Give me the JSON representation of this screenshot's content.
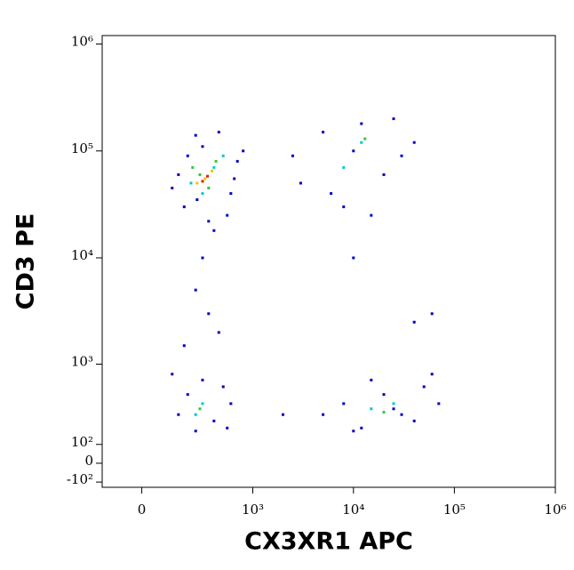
{
  "chart_data": {
    "type": "scatter",
    "x_label": "CX3XR1 APC",
    "y_label": "CD3 PE",
    "scale": "biexponential",
    "xlim": [
      -165,
      1000000
    ],
    "ylim": [
      -130,
      1200000
    ],
    "xticks": [
      0,
      {
        "value": 1000,
        "label": "10³"
      },
      {
        "value": 10000,
        "label": "10⁴"
      },
      {
        "value": 100000,
        "label": "10⁵"
      },
      {
        "value": 1000000,
        "label": "10⁶"
      }
    ],
    "yticks": [
      {
        "value": -100,
        "label": "-10²"
      },
      0,
      {
        "value": 100,
        "label": "10²"
      },
      {
        "value": 1000,
        "label": "10³"
      },
      {
        "value": 10000,
        "label": "10⁴"
      },
      {
        "value": 100000,
        "label": "10⁵"
      },
      {
        "value": 1000000,
        "label": "10⁶"
      }
    ],
    "series": [
      {
        "color": "#0000c8",
        "x": [
          180,
          250,
          600,
          150,
          700,
          400,
          300,
          550,
          200,
          450,
          120,
          650,
          350,
          800,
          260,
          3000,
          5000,
          8000,
          12000,
          20000,
          30000,
          40000,
          2500,
          6000,
          15000,
          25000,
          10000,
          150,
          200,
          400,
          600,
          300,
          250,
          500,
          180,
          350,
          250,
          450,
          120,
          550,
          300,
          5000,
          8000,
          12000,
          20000,
          30000,
          50000,
          70000,
          15000,
          40000,
          10000,
          60000,
          25000,
          2000,
          60000,
          40000,
          10000
        ],
        "y": [
          30000,
          140000,
          40000,
          60000,
          80000,
          18000,
          110000,
          25000,
          90000,
          150000,
          45000,
          55000,
          22000,
          100000,
          35000,
          50000,
          150000,
          30000,
          180000,
          60000,
          90000,
          120000,
          90000,
          40000,
          25000,
          200000,
          100000,
          300,
          500,
          250,
          400,
          700,
          180,
          600,
          1500,
          3000,
          5000,
          2000,
          800,
          200,
          10000,
          300,
          400,
          200,
          500,
          300,
          600,
          400,
          700,
          250,
          180,
          800,
          350,
          300,
          3000,
          2500,
          10000
        ]
      },
      {
        "color": "#00c8c8",
        "x": [
          220,
          400,
          300,
          500,
          12000,
          8000,
          300,
          250,
          15000,
          25000
        ],
        "y": [
          50000,
          70000,
          40000,
          90000,
          120000,
          70000,
          400,
          300,
          350,
          400
        ]
      },
      {
        "color": "#32c832",
        "x": [
          280,
          350,
          420,
          230,
          13000,
          280,
          20000
        ],
        "y": [
          60000,
          45000,
          80000,
          70000,
          130000,
          350,
          320
        ]
      },
      {
        "color": "#e6c800",
        "x": [
          320,
          380,
          260
        ],
        "y": [
          55000,
          65000,
          50000
        ]
      },
      {
        "color": "#e61e00",
        "x": [
          340,
          300
        ],
        "y": [
          58000,
          52000
        ]
      }
    ]
  }
}
